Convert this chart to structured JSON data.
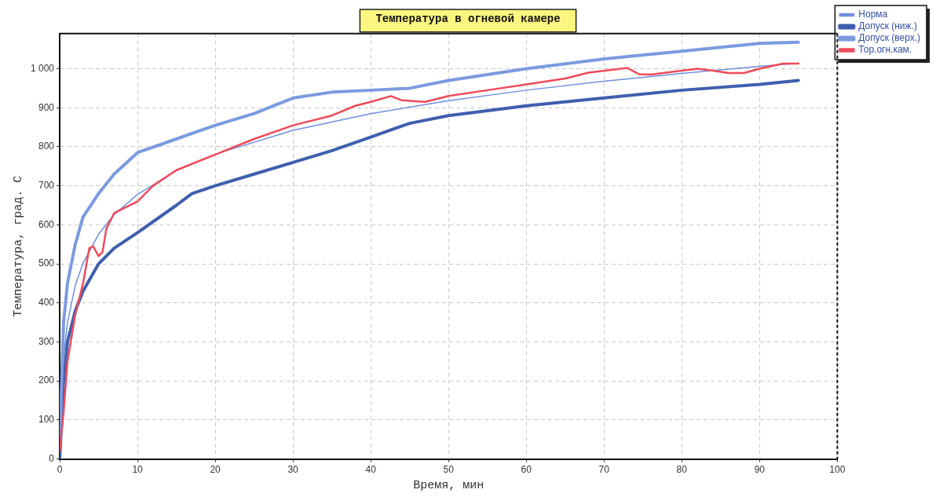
{
  "chart_data": {
    "type": "line",
    "title": "Температура в огневой камере",
    "xlabel": "Время, мин",
    "ylabel": "Температура, град. С",
    "xlim": [
      0,
      100
    ],
    "xticks": [
      0,
      10,
      20,
      30,
      40,
      50,
      60,
      70,
      80,
      90,
      100
    ],
    "ylim": [
      0,
      1090
    ],
    "yticks": [
      0,
      100,
      200,
      300,
      400,
      500,
      600,
      700,
      800,
      900,
      {
        "value": 1000,
        "label": "1 000"
      }
    ],
    "grid": true,
    "legend": "top right",
    "marker": "none",
    "line_style": "solid",
    "series": [
      {
        "name": "Норма",
        "color": "#6f8fe0",
        "x": [
          0,
          0.5,
          1,
          2,
          3,
          5,
          7,
          10,
          15,
          20,
          30,
          40,
          50,
          60,
          70,
          80,
          90,
          95
        ],
        "values": [
          20,
          260,
          349,
          445,
          502,
          576,
          626,
          678,
          739,
          781,
          842,
          885,
          918,
          945,
          968,
          988,
          1006,
          1014
        ]
      },
      {
        "name": "Допуск (ниж.)",
        "color": "#3f5fae",
        "x": [
          0,
          0.5,
          1,
          2,
          3,
          5,
          7,
          10,
          15,
          17,
          20,
          25,
          30,
          35,
          40,
          45,
          50,
          60,
          70,
          80,
          90,
          95
        ],
        "values": [
          0,
          200,
          300,
          380,
          430,
          500,
          540,
          580,
          650,
          680,
          700,
          730,
          760,
          790,
          825,
          860,
          880,
          905,
          925,
          945,
          960,
          970
        ]
      },
      {
        "name": "Допуск (верх.)",
        "color": "#7b9be0",
        "x": [
          0,
          0.5,
          1,
          2,
          3,
          5,
          7,
          10,
          15,
          20,
          25,
          30,
          35,
          40,
          45,
          50,
          60,
          70,
          80,
          90,
          95
        ],
        "values": [
          40,
          350,
          450,
          550,
          620,
          680,
          730,
          785,
          820,
          855,
          885,
          925,
          940,
          945,
          950,
          970,
          1000,
          1025,
          1045,
          1065,
          1068
        ]
      },
      {
        "name": "Тор.огн.кам.",
        "color": "#ef4a5a",
        "x": [
          0,
          0.5,
          1,
          2,
          3,
          3.8,
          4.3,
          5,
          5.5,
          6,
          7,
          8,
          10,
          12,
          15,
          20,
          25,
          30,
          35,
          38,
          40,
          42.6,
          44,
          47,
          50,
          55,
          60,
          65,
          68,
          73,
          74.5,
          76,
          80,
          82,
          84,
          86,
          88,
          90,
          93,
          95
        ],
        "values": [
          20,
          120,
          250,
          370,
          450,
          540,
          545,
          520,
          530,
          590,
          630,
          640,
          660,
          700,
          740,
          780,
          820,
          855,
          880,
          905,
          915,
          930,
          919,
          915,
          930,
          945,
          960,
          975,
          990,
          1002,
          986,
          985,
          995,
          1000,
          995,
          989,
          989,
          1000,
          1013,
          1013
        ]
      }
    ]
  }
}
